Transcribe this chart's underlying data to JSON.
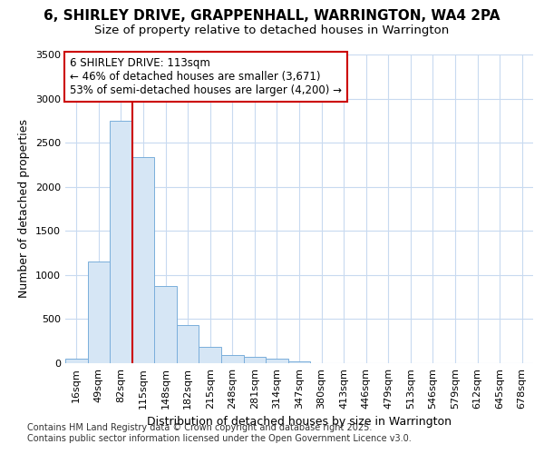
{
  "title1": "6, SHIRLEY DRIVE, GRAPPENHALL, WARRINGTON, WA4 2PA",
  "title2": "Size of property relative to detached houses in Warrington",
  "xlabel": "Distribution of detached houses by size in Warrington",
  "ylabel": "Number of detached properties",
  "categories": [
    "16sqm",
    "49sqm",
    "82sqm",
    "115sqm",
    "148sqm",
    "182sqm",
    "215sqm",
    "248sqm",
    "281sqm",
    "314sqm",
    "347sqm",
    "380sqm",
    "413sqm",
    "446sqm",
    "479sqm",
    "513sqm",
    "546sqm",
    "579sqm",
    "612sqm",
    "645sqm",
    "678sqm"
  ],
  "values": [
    50,
    1150,
    2750,
    2340,
    880,
    430,
    185,
    95,
    75,
    50,
    20,
    5,
    1,
    0,
    0,
    0,
    0,
    0,
    0,
    0,
    0
  ],
  "bar_color": "#d6e6f5",
  "bar_edge_color": "#7aaedb",
  "vline_position": 2.5,
  "vline_color": "#cc0000",
  "ylim_max": 3500,
  "yticks": [
    0,
    500,
    1000,
    1500,
    2000,
    2500,
    3000,
    3500
  ],
  "annotation_text": "6 SHIRLEY DRIVE: 113sqm\n← 46% of detached houses are smaller (3,671)\n53% of semi-detached houses are larger (4,200) →",
  "annotation_box_color": "#ffffff",
  "annotation_box_edge": "#cc0000",
  "bg_color": "#ffffff",
  "grid_color": "#c8daf0",
  "title_fontsize": 11,
  "subtitle_fontsize": 9.5,
  "tick_fontsize": 8,
  "ylabel_fontsize": 9,
  "xlabel_fontsize": 9,
  "ann_fontsize": 8.5,
  "footer_fontsize": 7,
  "footer1": "Contains HM Land Registry data © Crown copyright and database right 2025.",
  "footer2": "Contains public sector information licensed under the Open Government Licence v3.0."
}
